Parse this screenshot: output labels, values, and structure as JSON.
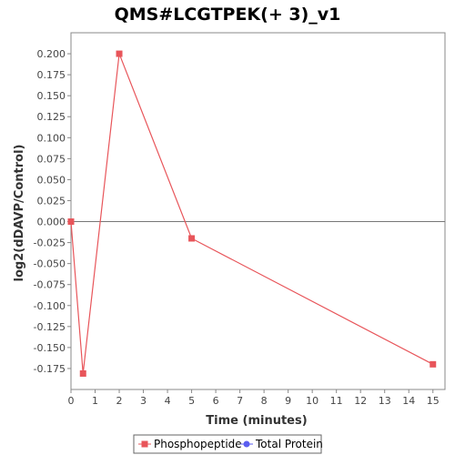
{
  "chart_data": {
    "type": "line",
    "title": "QMS#LCGTPEK(+ 3)_v1",
    "xlabel": "Time (minutes)",
    "ylabel": "log2(dDAVP/Control)",
    "xlim": [
      0,
      15.5
    ],
    "ylim": [
      -0.2,
      0.225
    ],
    "x_ticks": [
      0,
      1,
      2,
      3,
      4,
      5,
      6,
      7,
      8,
      9,
      10,
      11,
      12,
      13,
      14,
      15
    ],
    "y_ticks": [
      0.2,
      0.175,
      0.15,
      0.125,
      0.1,
      0.075,
      0.05,
      0.025,
      0.0,
      -0.025,
      -0.05,
      -0.075,
      -0.1,
      -0.125,
      -0.15,
      -0.175
    ],
    "y_tick_labels": [
      "0.200",
      "0.175",
      "0.150",
      "0.125",
      "0.100",
      "0.075",
      "0.050",
      "0.025",
      "0.000",
      "-0.025",
      "-0.050",
      "-0.075",
      "-0.100",
      "-0.125",
      "-0.150",
      "-0.175"
    ],
    "grid": false,
    "zero_line": true,
    "legend_position": "bottom-center",
    "series": [
      {
        "name": "Phosphopeptide",
        "color": "#e8555a",
        "marker": "square",
        "x": [
          0,
          0.5,
          2,
          5,
          15
        ],
        "y": [
          0.0,
          -0.181,
          0.2,
          -0.02,
          -0.17
        ]
      },
      {
        "name": "Total Protein",
        "color": "#5b5ef0",
        "marker": "circle",
        "x": [],
        "y": []
      }
    ]
  }
}
